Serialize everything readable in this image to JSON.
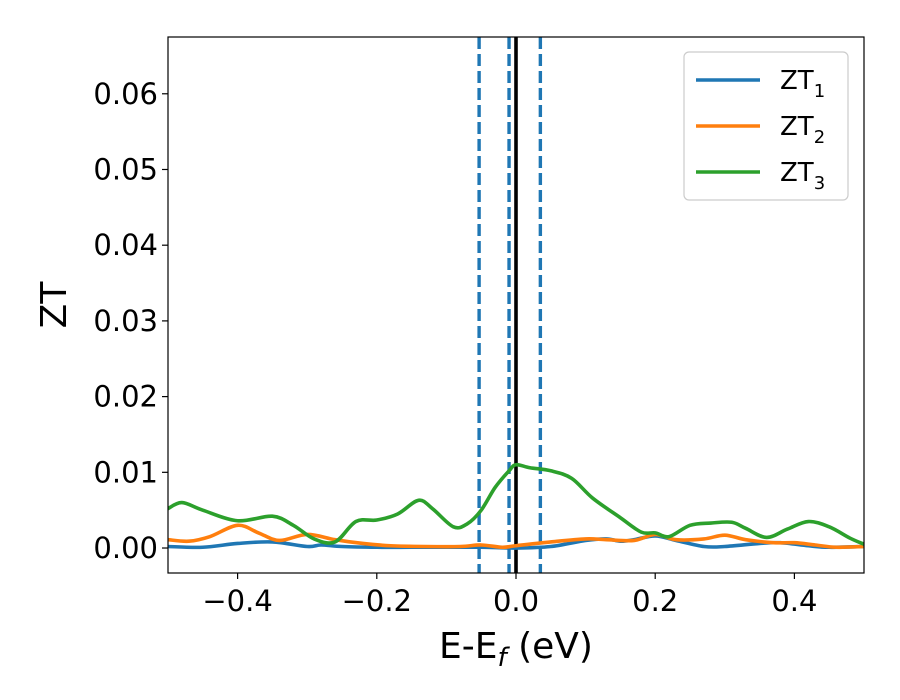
{
  "chart_data": {
    "type": "line",
    "title": "",
    "xlabel": "E-E",
    "xlabel_subscript": "f",
    "xlabel_unit": " (eV)",
    "ylabel": "ZT",
    "xlim": [
      -0.5,
      0.5
    ],
    "ylim": [
      -0.0033,
      0.0675
    ],
    "x_ticks": [
      -0.4,
      -0.2,
      0.0,
      0.2,
      0.4
    ],
    "x_tick_labels": [
      "−0.4",
      "−0.2",
      "0.0",
      "0.2",
      "0.4"
    ],
    "y_ticks": [
      0.0,
      0.01,
      0.02,
      0.03,
      0.04,
      0.05,
      0.06
    ],
    "y_tick_labels": [
      "0.00",
      "0.01",
      "0.02",
      "0.03",
      "0.04",
      "0.05",
      "0.06"
    ],
    "grid": false,
    "legend_position": "top-right",
    "vlines": [
      {
        "x": 0.0,
        "style": "solid",
        "color": "#000000"
      },
      {
        "x": -0.053,
        "style": "dashed",
        "color": "#1f77b4"
      },
      {
        "x": -0.01,
        "style": "dashed",
        "color": "#1f77b4"
      },
      {
        "x": 0.035,
        "style": "dashed",
        "color": "#1f77b4"
      }
    ],
    "series": [
      {
        "name": "ZT",
        "name_subscript": "1",
        "color": "#1f77b4",
        "x": [
          -0.5,
          -0.45,
          -0.4,
          -0.35,
          -0.3,
          -0.28,
          -0.25,
          -0.2,
          -0.15,
          -0.1,
          -0.05,
          0.0,
          0.05,
          0.1,
          0.13,
          0.15,
          0.17,
          0.2,
          0.23,
          0.27,
          0.3,
          0.35,
          0.38,
          0.42,
          0.45,
          0.5
        ],
        "values": [
          0.0002,
          0.0001,
          0.0006,
          0.0008,
          0.0002,
          0.0004,
          0.0002,
          0.0001,
          0.0001,
          0.0001,
          0.0001,
          0.0,
          0.0002,
          0.001,
          0.0012,
          0.0009,
          0.0011,
          0.0016,
          0.001,
          0.0002,
          0.0002,
          0.0006,
          0.0007,
          0.0003,
          0.0001,
          0.0002
        ]
      },
      {
        "name": "ZT",
        "name_subscript": "2",
        "color": "#ff7f0e",
        "x": [
          -0.5,
          -0.47,
          -0.44,
          -0.4,
          -0.37,
          -0.34,
          -0.3,
          -0.26,
          -0.22,
          -0.18,
          -0.13,
          -0.08,
          -0.05,
          -0.02,
          0.0,
          0.05,
          0.1,
          0.13,
          0.17,
          0.2,
          0.23,
          0.27,
          0.3,
          0.33,
          0.37,
          0.4,
          0.43,
          0.46,
          0.5
        ],
        "values": [
          0.0011,
          0.0009,
          0.0015,
          0.003,
          0.002,
          0.001,
          0.0018,
          0.0011,
          0.0006,
          0.0003,
          0.0002,
          0.0002,
          0.0004,
          0.0001,
          0.0003,
          0.0008,
          0.0012,
          0.0011,
          0.001,
          0.0018,
          0.0011,
          0.0012,
          0.0017,
          0.0011,
          0.0007,
          0.0007,
          0.0004,
          0.0001,
          0.0002
        ]
      },
      {
        "name": "ZT",
        "name_subscript": "3",
        "color": "#2ca02c",
        "x": [
          -0.5,
          -0.48,
          -0.45,
          -0.4,
          -0.35,
          -0.32,
          -0.29,
          -0.26,
          -0.23,
          -0.2,
          -0.17,
          -0.14,
          -0.12,
          -0.09,
          -0.07,
          -0.05,
          -0.03,
          -0.01,
          0.0,
          0.02,
          0.05,
          0.08,
          0.11,
          0.15,
          0.18,
          0.2,
          0.22,
          0.25,
          0.28,
          0.31,
          0.33,
          0.36,
          0.39,
          0.42,
          0.45,
          0.48,
          0.5
        ],
        "values": [
          0.0052,
          0.006,
          0.005,
          0.0036,
          0.0042,
          0.003,
          0.0012,
          0.0008,
          0.0035,
          0.0037,
          0.0045,
          0.0063,
          0.0052,
          0.0028,
          0.0032,
          0.005,
          0.008,
          0.0102,
          0.011,
          0.0106,
          0.0102,
          0.0092,
          0.0066,
          0.004,
          0.0021,
          0.002,
          0.0015,
          0.003,
          0.0033,
          0.0034,
          0.0026,
          0.0014,
          0.0025,
          0.0035,
          0.0028,
          0.0013,
          0.0005
        ]
      }
    ]
  }
}
